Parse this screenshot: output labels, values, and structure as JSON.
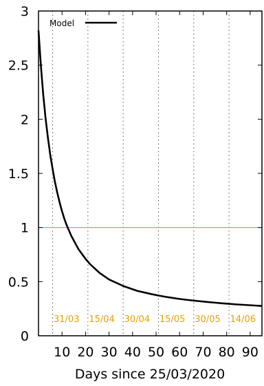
{
  "chart_data": {
    "type": "line",
    "xlabel": "Days since 25/03/2020",
    "ylabel": "",
    "xlim": [
      0,
      95
    ],
    "ylim": [
      0,
      3
    ],
    "x_ticks": [
      10,
      20,
      30,
      40,
      50,
      60,
      70,
      80,
      90
    ],
    "x_tick_labels": [
      "10",
      "20",
      "30",
      "40",
      "50",
      "60",
      "70",
      "80",
      "90"
    ],
    "y_ticks": [
      0,
      0.5,
      1,
      1.5,
      2,
      2.5,
      3
    ],
    "y_tick_labels": [
      "0",
      "0.5",
      "1",
      "1.5",
      "2",
      "2.5",
      "3"
    ],
    "grid": "dotted vertical lines at dates",
    "legend": {
      "placement": "top-left",
      "entries": [
        {
          "label": "Model",
          "color": "#000000"
        }
      ]
    },
    "reference_line": {
      "y": 1,
      "color": "#5aaed4"
    },
    "date_markers": [
      {
        "x": 6,
        "label": "31/03"
      },
      {
        "x": 21,
        "label": "15/04"
      },
      {
        "x": 36,
        "label": "30/04"
      },
      {
        "x": 51,
        "label": "15/05"
      },
      {
        "x": 66,
        "label": "30/05"
      },
      {
        "x": 81,
        "label": "14/06"
      }
    ],
    "date_marker_color": "#e8a000",
    "series": [
      {
        "name": "Model",
        "color": "#000000",
        "x": [
          0,
          1,
          2,
          3,
          4,
          5,
          6,
          7,
          8,
          9,
          10,
          11,
          12,
          13,
          14,
          15,
          16,
          17,
          18,
          19,
          20,
          22,
          24,
          26,
          28,
          30,
          32,
          34,
          36,
          38,
          40,
          42,
          45,
          48,
          51,
          54,
          57,
          60,
          63,
          66,
          69,
          72,
          75,
          78,
          81,
          84,
          87,
          90,
          93,
          95
        ],
        "y": [
          2.82,
          2.5,
          2.23,
          2.01,
          1.83,
          1.67,
          1.54,
          1.42,
          1.32,
          1.23,
          1.15,
          1.08,
          1.02,
          0.97,
          0.92,
          0.88,
          0.84,
          0.8,
          0.77,
          0.74,
          0.71,
          0.66,
          0.62,
          0.58,
          0.55,
          0.52,
          0.5,
          0.48,
          0.46,
          0.445,
          0.43,
          0.415,
          0.4,
          0.385,
          0.372,
          0.36,
          0.35,
          0.34,
          0.332,
          0.325,
          0.318,
          0.312,
          0.306,
          0.3,
          0.295,
          0.29,
          0.286,
          0.282,
          0.278,
          0.275
        ]
      }
    ]
  }
}
